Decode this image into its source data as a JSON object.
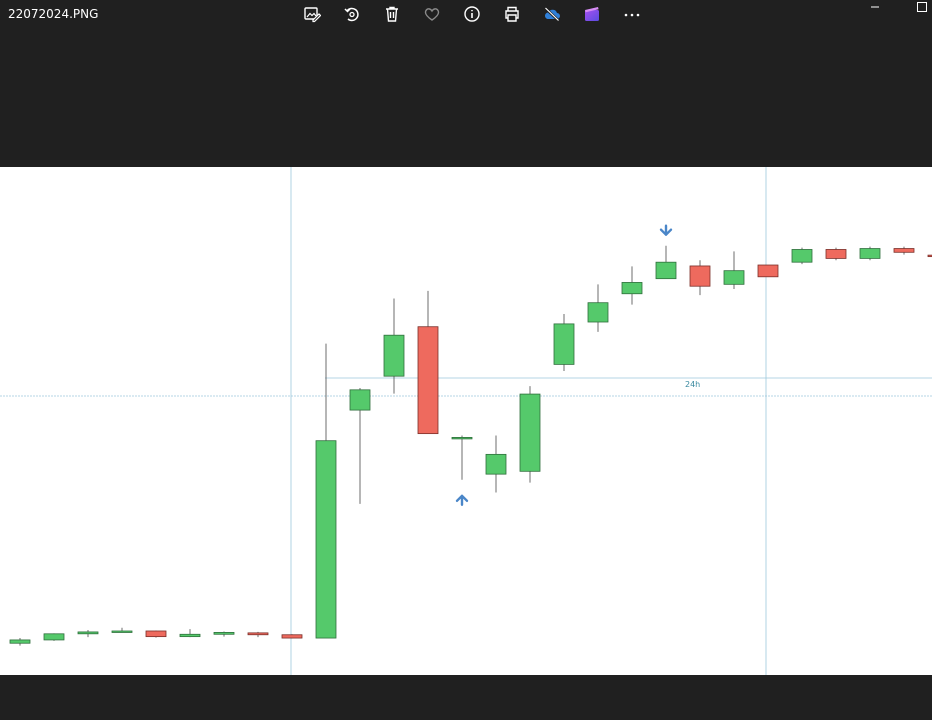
{
  "window": {
    "title": "22072024.PNG"
  },
  "toolbar": {
    "buttons": [
      {
        "name": "edit-image-button",
        "icon": "edit-image-icon"
      },
      {
        "name": "rotate-button",
        "icon": "rotate-icon"
      },
      {
        "name": "delete-button",
        "icon": "trash-icon"
      },
      {
        "name": "favorite-button",
        "icon": "heart-icon"
      },
      {
        "name": "info-button",
        "icon": "info-icon"
      },
      {
        "name": "print-button",
        "icon": "print-icon"
      },
      {
        "name": "onedrive-button",
        "icon": "cloud-off-icon"
      },
      {
        "name": "clipchamp-button",
        "icon": "clipchamp-icon"
      },
      {
        "name": "more-button",
        "icon": "more-icon"
      }
    ]
  },
  "colors": {
    "chrome_bg": "#202020",
    "up": "#55c96b",
    "down": "#ee6a5e",
    "marker": "#4a86c8",
    "gridline": "#9cc8dc"
  },
  "chart_data": {
    "type": "candlestick",
    "annotations": [
      {
        "label": "24h"
      }
    ],
    "markers": [
      {
        "index": 13,
        "direction": "up"
      },
      {
        "index": 19,
        "direction": "down"
      }
    ],
    "candles": [
      {
        "open": 0.8,
        "close": 1.5,
        "high": 1.9,
        "low": 0.3
      },
      {
        "open": 1.5,
        "close": 2.8,
        "high": 2.9,
        "low": 1.3
      },
      {
        "open": 2.8,
        "close": 3.2,
        "high": 3.6,
        "low": 2.1
      },
      {
        "open": 3.2,
        "close": 3.4,
        "high": 4.1,
        "low": 3.1
      },
      {
        "open": 3.4,
        "close": 2.2,
        "high": 3.5,
        "low": 2.0
      },
      {
        "open": 2.2,
        "close": 2.7,
        "high": 3.8,
        "low": 2.1
      },
      {
        "open": 2.7,
        "close": 3.1,
        "high": 3.3,
        "low": 2.2
      },
      {
        "open": 3.0,
        "close": 2.6,
        "high": 3.2,
        "low": 2.1
      },
      {
        "open": 2.6,
        "close": 1.9,
        "high": 2.7,
        "low": 1.8
      },
      {
        "open": 1.9,
        "close": 43.8,
        "high": 64.4,
        "low": 1.9
      },
      {
        "open": 50.3,
        "close": 54.6,
        "high": 55.0,
        "low": 30.4
      },
      {
        "open": 57.5,
        "close": 66.2,
        "high": 74.0,
        "low": 53.8
      },
      {
        "open": 68.0,
        "close": 45.3,
        "high": 75.6,
        "low": 45.3
      },
      {
        "open": 44.3,
        "close": 44.5,
        "high": 44.9,
        "low": 35.5
      },
      {
        "open": 36.7,
        "close": 40.9,
        "high": 44.9,
        "low": 32.8
      },
      {
        "open": 37.3,
        "close": 53.7,
        "high": 55.4,
        "low": 34.9
      },
      {
        "open": 60.0,
        "close": 68.6,
        "high": 70.7,
        "low": 58.6
      },
      {
        "open": 69.0,
        "close": 73.1,
        "high": 77.0,
        "low": 66.9
      },
      {
        "open": 75.0,
        "close": 77.4,
        "high": 80.8,
        "low": 72.7
      },
      {
        "open": 78.2,
        "close": 81.7,
        "high": 85.2,
        "low": 78.2
      },
      {
        "open": 80.9,
        "close": 76.6,
        "high": 82.1,
        "low": 74.7
      },
      {
        "open": 77.0,
        "close": 79.9,
        "high": 84.0,
        "low": 76.0
      },
      {
        "open": 81.1,
        "close": 78.6,
        "high": 81.1,
        "low": 78.6
      },
      {
        "open": 81.7,
        "close": 84.4,
        "high": 84.8,
        "low": 81.3
      },
      {
        "open": 84.4,
        "close": 82.5,
        "high": 84.8,
        "low": 82.1
      },
      {
        "open": 82.5,
        "close": 84.6,
        "high": 85.0,
        "low": 82.1
      },
      {
        "open": 84.6,
        "close": 83.8,
        "high": 85.0,
        "low": 83.3
      },
      {
        "open": 83.2,
        "close": 82.9,
        "high": 83.2,
        "low": 82.9
      }
    ]
  }
}
